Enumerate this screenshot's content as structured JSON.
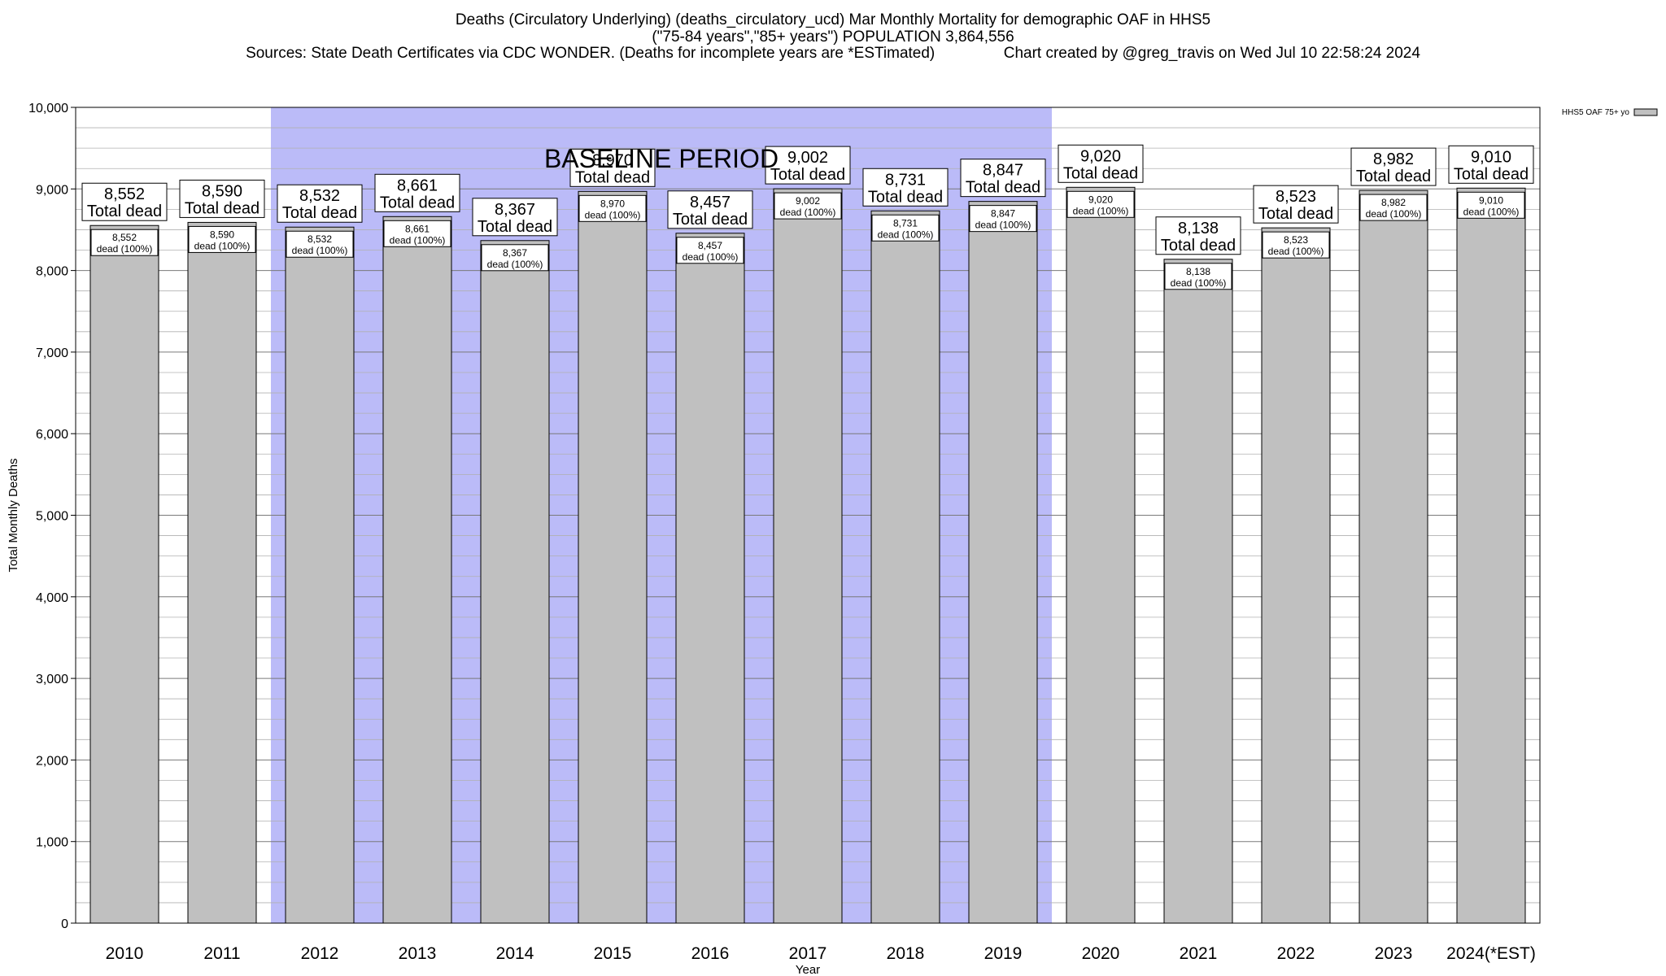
{
  "chart_data": {
    "type": "bar",
    "title": "Deaths (Circulatory Underlying) (deaths_circulatory_ucd) Mar Monthly Mortality for demographic OAF in HHS5",
    "subtitle": "(\"75-84 years\",\"85+ years\") POPULATION 3,864,556",
    "sources": "Sources: State Death Certificates via CDC WONDER. (Deaths for incomplete years are *ESTimated)",
    "credit": "Chart created by @greg_travis on Wed Jul 10 22:58:24 2024",
    "xlabel": "Year",
    "ylabel": "Total Monthly Deaths",
    "ylim": [
      0,
      10000
    ],
    "yticks": [
      0,
      1000,
      2000,
      3000,
      4000,
      5000,
      6000,
      7000,
      8000,
      9000,
      10000
    ],
    "ytick_labels": [
      "0",
      "1,000",
      "2,000",
      "3,000",
      "4,000",
      "5,000",
      "6,000",
      "7,000",
      "8,000",
      "9,000",
      "10,000"
    ],
    "categories": [
      "2010",
      "2011",
      "2012",
      "2013",
      "2014",
      "2015",
      "2016",
      "2017",
      "2018",
      "2019",
      "2020",
      "2021",
      "2022",
      "2023",
      "2024(*EST)"
    ],
    "series": [
      {
        "name": "HHS5 OAF 75+ yo",
        "values": [
          8552,
          8590,
          8532,
          8661,
          8367,
          8970,
          8457,
          9002,
          8731,
          8847,
          9020,
          8138,
          8523,
          8982,
          9010
        ],
        "value_labels": [
          "8,552",
          "8,590",
          "8,532",
          "8,661",
          "8,367",
          "8,970",
          "8,457",
          "9,002",
          "8,731",
          "8,847",
          "9,020",
          "8,138",
          "8,523",
          "8,982",
          "9,010"
        ],
        "color": "#c0c0c0"
      }
    ],
    "total_label": "Total dead",
    "inner_label_suffix": "dead (100%)",
    "baseline": {
      "label": "BASELINE PERIOD",
      "start_category": "2012",
      "end_category": "2019",
      "color": "#bbbbf8"
    },
    "grid": true,
    "legend_position": "top-right"
  }
}
